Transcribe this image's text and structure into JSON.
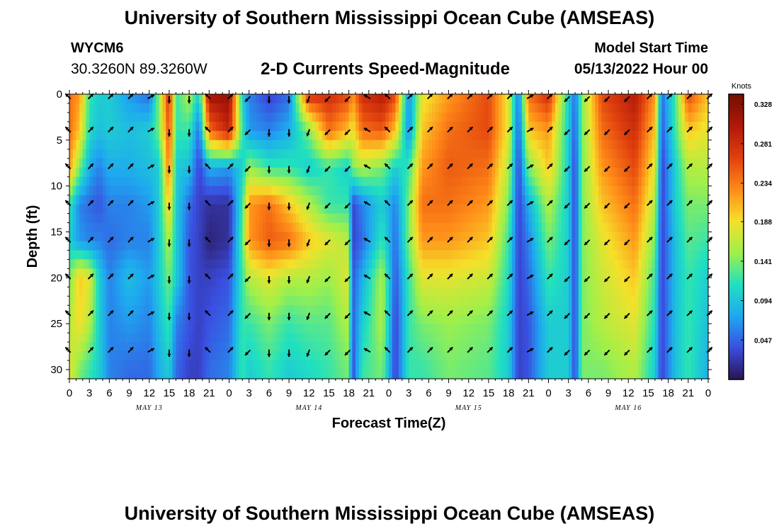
{
  "header": {
    "title": "University of Southern Mississippi Ocean Cube (AMSEAS)",
    "station": "WYCM6",
    "coordinates": "30.3260N  89.3260W",
    "subtitle": "2-D Currents Speed-Magnitude",
    "model_start_label": "Model Start Time",
    "model_start_value": "05/13/2022 Hour 00"
  },
  "footer": {
    "title": "University of Southern Mississippi Ocean Cube (AMSEAS)"
  },
  "chart_data": {
    "type": "heatmap",
    "title": "2-D Currents Speed-Magnitude",
    "xlabel": "Forecast Time(Z)",
    "ylabel": "Depth (ft)",
    "x_ticks": [
      "0",
      "3",
      "6",
      "9",
      "12",
      "15",
      "18",
      "21",
      "0",
      "3",
      "6",
      "9",
      "12",
      "15",
      "18",
      "21",
      "0",
      "3",
      "6",
      "9",
      "12",
      "15",
      "18",
      "21",
      "0",
      "3",
      "6",
      "9",
      "12",
      "15",
      "18",
      "21",
      "0"
    ],
    "x_range_hours": [
      0,
      96
    ],
    "day_labels": [
      {
        "label": "MAY 13",
        "hour": 12
      },
      {
        "label": "MAY 14",
        "hour": 36
      },
      {
        "label": "MAY 15",
        "hour": 60
      },
      {
        "label": "MAY 16",
        "hour": 84
      }
    ],
    "y_ticks": [
      0,
      5,
      10,
      15,
      20,
      25,
      30
    ],
    "y_range_ft": [
      0,
      31
    ],
    "colorbar": {
      "unit": "Knots",
      "min": 0.0,
      "max": 0.34,
      "ticks": [
        "0.328",
        "0.281",
        "0.234",
        "0.188",
        "0.141",
        "0.094",
        "0.047"
      ],
      "tick_values": [
        0.328,
        0.281,
        0.234,
        0.188,
        0.141,
        0.094,
        0.047
      ],
      "colors": [
        "#2a1450",
        "#3a4ee0",
        "#1ea8f0",
        "#20e0c0",
        "#9ff04a",
        "#f5e02a",
        "#ff8a18",
        "#e0400e",
        "#b01808",
        "#701000"
      ]
    },
    "heatmap_columns": [
      {
        "hour": 0,
        "speed": [
          0.24,
          0.24,
          0.22,
          0.12,
          0.1,
          0.14,
          0.16,
          0.18
        ]
      },
      {
        "hour": 1.5,
        "speed": [
          0.22,
          0.2,
          0.14,
          0.06,
          0.07,
          0.2,
          0.19,
          0.14
        ]
      },
      {
        "hour": 3,
        "speed": [
          0.12,
          0.11,
          0.08,
          0.05,
          0.06,
          0.18,
          0.16,
          0.12
        ]
      },
      {
        "hour": 4.5,
        "speed": [
          0.1,
          0.09,
          0.06,
          0.04,
          0.06,
          0.1,
          0.1,
          0.1
        ]
      },
      {
        "hour": 6,
        "speed": [
          0.1,
          0.1,
          0.08,
          0.06,
          0.05,
          0.06,
          0.06,
          0.06
        ]
      },
      {
        "hour": 9,
        "speed": [
          0.07,
          0.09,
          0.08,
          0.06,
          0.06,
          0.09,
          0.07,
          0.05
        ]
      },
      {
        "hour": 12,
        "speed": [
          0.05,
          0.1,
          0.09,
          0.07,
          0.06,
          0.07,
          0.06,
          0.05
        ]
      },
      {
        "hour": 13.5,
        "speed": [
          0.15,
          0.14,
          0.1,
          0.1,
          0.1,
          0.1,
          0.09,
          0.08
        ]
      },
      {
        "hour": 15,
        "speed": [
          0.28,
          0.26,
          0.24,
          0.2,
          0.16,
          0.14,
          0.12,
          0.1
        ]
      },
      {
        "hour": 16,
        "speed": [
          0.12,
          0.12,
          0.1,
          0.1,
          0.1,
          0.1,
          0.06,
          0.05
        ]
      },
      {
        "hour": 18,
        "speed": [
          0.16,
          0.12,
          0.09,
          0.05,
          0.04,
          0.04,
          0.04,
          0.03
        ]
      },
      {
        "hour": 19.5,
        "speed": [
          0.1,
          0.05,
          0.03,
          0.03,
          0.03,
          0.03,
          0.03,
          0.03
        ]
      },
      {
        "hour": 21,
        "speed": [
          0.31,
          0.24,
          0.08,
          0.02,
          0.01,
          0.03,
          0.04,
          0.05
        ]
      },
      {
        "hour": 24,
        "speed": [
          0.32,
          0.29,
          0.07,
          0.02,
          0.02,
          0.04,
          0.05,
          0.06
        ]
      },
      {
        "hour": 26,
        "speed": [
          0.1,
          0.12,
          0.1,
          0.12,
          0.13,
          0.12,
          0.12,
          0.12
        ]
      },
      {
        "hour": 27,
        "speed": [
          0.06,
          0.07,
          0.15,
          0.22,
          0.22,
          0.16,
          0.12,
          0.1
        ]
      },
      {
        "hour": 30,
        "speed": [
          0.03,
          0.06,
          0.12,
          0.24,
          0.25,
          0.18,
          0.14,
          0.12
        ]
      },
      {
        "hour": 33,
        "speed": [
          0.05,
          0.08,
          0.12,
          0.2,
          0.24,
          0.16,
          0.12,
          0.1
        ]
      },
      {
        "hour": 36,
        "speed": [
          0.28,
          0.14,
          0.1,
          0.16,
          0.2,
          0.16,
          0.13,
          0.11
        ]
      },
      {
        "hour": 39,
        "speed": [
          0.28,
          0.24,
          0.12,
          0.12,
          0.18,
          0.15,
          0.13,
          0.12
        ]
      },
      {
        "hour": 42,
        "speed": [
          0.26,
          0.2,
          0.1,
          0.12,
          0.16,
          0.18,
          0.16,
          0.14
        ]
      },
      {
        "hour": 42.5,
        "speed": [
          0.22,
          0.18,
          0.14,
          0.03,
          0.03,
          0.04,
          0.04,
          0.03
        ]
      },
      {
        "hour": 44,
        "speed": [
          0.28,
          0.24,
          0.16,
          0.06,
          0.05,
          0.08,
          0.1,
          0.12
        ]
      },
      {
        "hour": 47,
        "speed": [
          0.3,
          0.25,
          0.14,
          0.1,
          0.12,
          0.16,
          0.16,
          0.14
        ]
      },
      {
        "hour": 49,
        "speed": [
          0.26,
          0.2,
          0.1,
          0.06,
          0.05,
          0.04,
          0.03,
          0.03
        ]
      },
      {
        "hour": 51,
        "speed": [
          0.06,
          0.06,
          0.12,
          0.14,
          0.14,
          0.12,
          0.12,
          0.12
        ]
      },
      {
        "hour": 53,
        "speed": [
          0.18,
          0.2,
          0.22,
          0.24,
          0.22,
          0.18,
          0.14,
          0.12
        ]
      },
      {
        "hour": 57,
        "speed": [
          0.22,
          0.24,
          0.25,
          0.24,
          0.22,
          0.18,
          0.15,
          0.14
        ]
      },
      {
        "hour": 63,
        "speed": [
          0.26,
          0.26,
          0.24,
          0.22,
          0.2,
          0.17,
          0.14,
          0.13
        ]
      },
      {
        "hour": 66,
        "speed": [
          0.18,
          0.18,
          0.16,
          0.14,
          0.12,
          0.11,
          0.1,
          0.1
        ]
      },
      {
        "hour": 67.5,
        "speed": [
          0.05,
          0.04,
          0.03,
          0.03,
          0.03,
          0.03,
          0.03,
          0.03
        ]
      },
      {
        "hour": 69,
        "speed": [
          0.24,
          0.2,
          0.14,
          0.08,
          0.06,
          0.05,
          0.04,
          0.04
        ]
      },
      {
        "hour": 72,
        "speed": [
          0.28,
          0.22,
          0.2,
          0.16,
          0.14,
          0.12,
          0.1,
          0.1
        ]
      },
      {
        "hour": 75,
        "speed": [
          0.1,
          0.1,
          0.1,
          0.1,
          0.1,
          0.1,
          0.1,
          0.1
        ]
      },
      {
        "hour": 76,
        "speed": [
          0.05,
          0.04,
          0.03,
          0.03,
          0.03,
          0.03,
          0.03,
          0.03
        ]
      },
      {
        "hour": 77,
        "speed": [
          0.14,
          0.14,
          0.14,
          0.14,
          0.14,
          0.14,
          0.14,
          0.14
        ]
      },
      {
        "hour": 80,
        "speed": [
          0.26,
          0.24,
          0.22,
          0.2,
          0.18,
          0.17,
          0.16,
          0.14
        ]
      },
      {
        "hour": 85,
        "speed": [
          0.3,
          0.28,
          0.26,
          0.24,
          0.22,
          0.2,
          0.18,
          0.16
        ]
      },
      {
        "hour": 88,
        "speed": [
          0.22,
          0.2,
          0.18,
          0.16,
          0.14,
          0.12,
          0.11,
          0.1
        ]
      },
      {
        "hour": 89,
        "speed": [
          0.05,
          0.04,
          0.03,
          0.03,
          0.03,
          0.03,
          0.03,
          0.03
        ]
      },
      {
        "hour": 91,
        "speed": [
          0.12,
          0.12,
          0.1,
          0.1,
          0.09,
          0.09,
          0.09,
          0.09
        ]
      },
      {
        "hour": 93,
        "speed": [
          0.26,
          0.2,
          0.16,
          0.14,
          0.13,
          0.12,
          0.12,
          0.12
        ]
      },
      {
        "hour": 96,
        "speed": [
          0.2,
          0.18,
          0.16,
          0.14,
          0.12,
          0.1,
          0.09,
          0.08
        ]
      }
    ],
    "heatmap_depths_ft": [
      0,
      4,
      8,
      12,
      16,
      20,
      25,
      30
    ],
    "vector_depths_ft": [
      0,
      4,
      8,
      12,
      16,
      20,
      24,
      28
    ],
    "vector_hours": [
      0,
      3,
      6,
      9,
      12,
      15,
      18,
      21,
      24,
      27,
      30,
      33,
      36,
      39,
      42,
      45,
      48,
      51,
      54,
      57,
      60,
      63,
      66,
      69,
      72,
      75,
      78,
      81,
      84,
      87,
      90,
      93,
      96
    ],
    "vector_direction_deg_by_hour": [
      315,
      45,
      45,
      45,
      60,
      180,
      180,
      315,
      45,
      225,
      180,
      180,
      200,
      225,
      225,
      300,
      315,
      45,
      45,
      45,
      45,
      45,
      45,
      60,
      45,
      225,
      225,
      225,
      225,
      45,
      45,
      45,
      45
    ]
  }
}
